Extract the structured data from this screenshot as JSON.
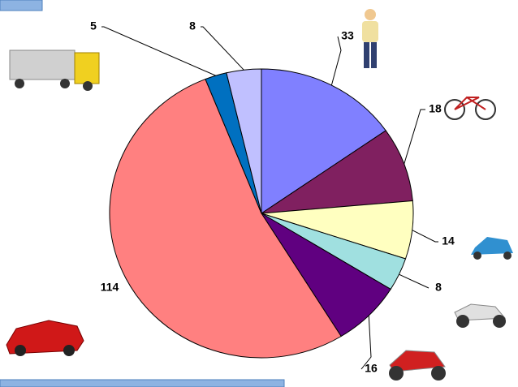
{
  "chart_data": {
    "type": "pie",
    "values": [
      33,
      18,
      14,
      8,
      16,
      114,
      5,
      8
    ],
    "colors": [
      "#8080ff",
      "#802060",
      "#ffffc0",
      "#a0e0e0",
      "#600080",
      "#ff8080",
      "#0070c0",
      "#c0c0ff"
    ]
  }
}
